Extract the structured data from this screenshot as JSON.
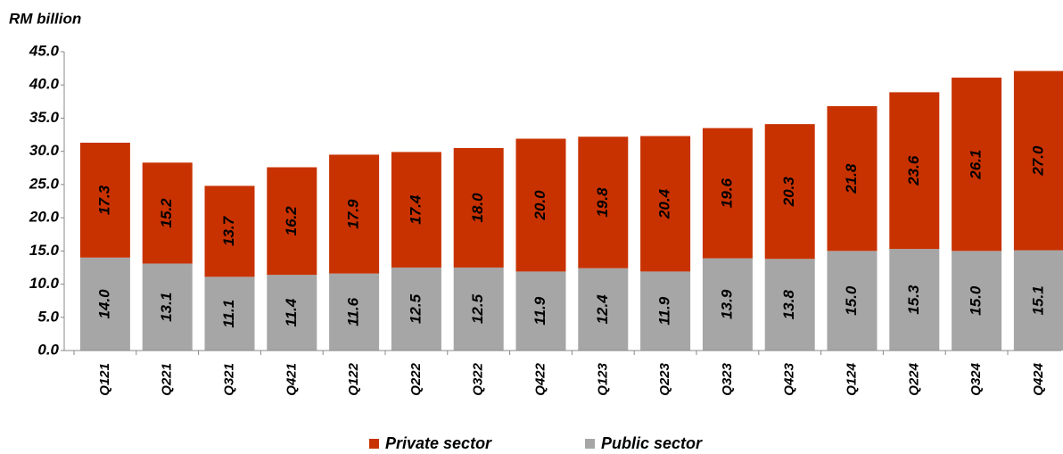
{
  "chart_data": {
    "type": "stacked_bar",
    "title": "RM billion",
    "categories": [
      "Q121",
      "Q221",
      "Q321",
      "Q421",
      "Q122",
      "Q222",
      "Q322",
      "Q422",
      "Q123",
      "Q223",
      "Q323",
      "Q423",
      "Q124",
      "Q224",
      "Q324",
      "Q424"
    ],
    "series": [
      {
        "name": "Private sector",
        "color": "#c83200",
        "values": [
          17.3,
          15.2,
          13.7,
          16.2,
          17.9,
          17.4,
          18.0,
          20.0,
          19.8,
          20.4,
          19.6,
          20.3,
          21.8,
          23.6,
          26.1,
          27.0
        ],
        "value_labels": [
          "17.3",
          "15.2",
          "13.7",
          "16.2",
          "17.9",
          "17.4",
          "18.0",
          "20.0",
          "19.8",
          "20.4",
          "19.6",
          "20.3",
          "21.8",
          "23.6",
          "26.1",
          "27.0"
        ]
      },
      {
        "name": "Public sector",
        "color": "#a6a6a6",
        "values": [
          14.0,
          13.1,
          11.1,
          11.4,
          11.6,
          12.5,
          12.5,
          11.9,
          12.4,
          11.9,
          13.9,
          13.8,
          15.0,
          15.3,
          15.0,
          15.1
        ],
        "value_labels": [
          "14.0",
          "13.1",
          "11.1",
          "11.4",
          "11.6",
          "12.5",
          "12.5",
          "11.9",
          "12.4",
          "11.9",
          "13.9",
          "13.8",
          "15.0",
          "15.3",
          "15.0",
          "15.1"
        ]
      }
    ],
    "ylim": [
      0,
      45
    ],
    "yticks": [
      {
        "value": 0,
        "label": "0.0"
      },
      {
        "value": 5,
        "label": "5.0"
      },
      {
        "value": 10,
        "label": "10.0"
      },
      {
        "value": 15,
        "label": "15.0"
      },
      {
        "value": 20,
        "label": "20.0"
      },
      {
        "value": 25,
        "label": "25.0"
      },
      {
        "value": 30,
        "label": "30.0"
      },
      {
        "value": 35,
        "label": "35.0"
      },
      {
        "value": 40,
        "label": "40.0"
      },
      {
        "value": 45,
        "label": "45.0"
      }
    ],
    "grid": false,
    "legend": "bottom"
  }
}
